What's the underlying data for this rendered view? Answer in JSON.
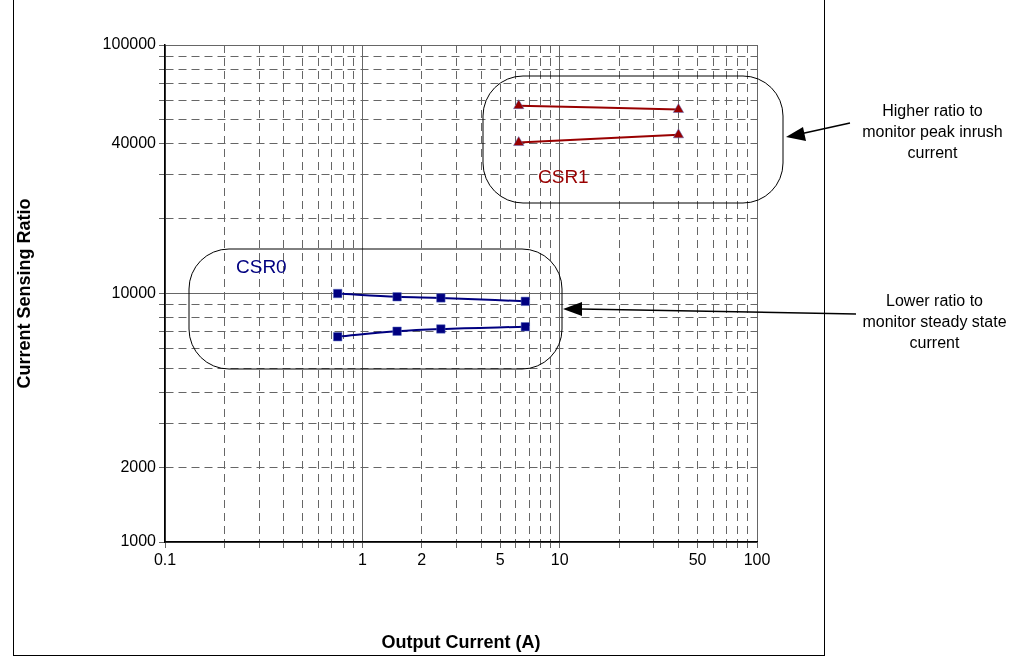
{
  "chart_data": {
    "type": "line",
    "xlabel": "Output Current (A)",
    "ylabel": "Current Sensing Ratio",
    "log": "xy",
    "grid": true,
    "legend": false,
    "xlim": [
      0.1,
      100
    ],
    "ylim": [
      1000,
      100000
    ],
    "xticks": [
      0.1,
      {
        "value": 0.2,
        "label": null
      },
      {
        "value": 0.3,
        "label": null
      },
      {
        "value": 0.4,
        "label": null
      },
      {
        "value": 0.5,
        "label": null
      },
      {
        "value": 0.6,
        "label": null
      },
      {
        "value": 0.7,
        "label": null
      },
      {
        "value": 0.8,
        "label": null
      },
      {
        "value": 0.9,
        "label": null
      },
      1,
      2,
      {
        "value": 3,
        "label": null
      },
      {
        "value": 4,
        "label": null
      },
      5,
      {
        "value": 6,
        "label": null
      },
      {
        "value": 7,
        "label": null
      },
      {
        "value": 8,
        "label": null
      },
      {
        "value": 9,
        "label": null
      },
      10,
      {
        "value": 20,
        "label": null
      },
      {
        "value": 30,
        "label": null
      },
      {
        "value": 40,
        "label": null
      },
      50,
      {
        "value": 60,
        "label": null
      },
      {
        "value": 70,
        "label": null
      },
      {
        "value": 80,
        "label": null
      },
      {
        "value": 90,
        "label": null
      },
      100
    ],
    "yticks": [
      1000,
      2000,
      {
        "value": 3000,
        "label": null
      },
      {
        "value": 4000,
        "label": null
      },
      {
        "value": 5000,
        "label": null
      },
      {
        "value": 6000,
        "label": null
      },
      {
        "value": 7000,
        "label": null
      },
      {
        "value": 8000,
        "label": null
      },
      {
        "value": 9000,
        "label": null
      },
      10000,
      {
        "value": 20000,
        "label": null
      },
      {
        "value": 30000,
        "label": null
      },
      40000,
      {
        "value": 50000,
        "label": null
      },
      {
        "value": 60000,
        "label": null
      },
      {
        "value": 70000,
        "label": null
      },
      {
        "value": 80000,
        "label": null
      },
      {
        "value": 90000,
        "label": null
      },
      100000
    ],
    "series": [
      {
        "color": "#000080",
        "marker": "square",
        "x": [
          0.75,
          1.5,
          2.5,
          6.7
        ],
        "values": [
          10000,
          9700,
          9600,
          9300
        ]
      },
      {
        "color": "#000080",
        "marker": "square",
        "x": [
          0.75,
          1.5,
          2.5,
          6.7
        ],
        "values": [
          6700,
          7050,
          7200,
          7350
        ]
      },
      {
        "color": "#990000",
        "marker": "triangle",
        "x": [
          6.2,
          40
        ],
        "values": [
          57000,
          55000
        ]
      },
      {
        "color": "#990000",
        "marker": "triangle",
        "x": [
          6.2,
          40
        ],
        "values": [
          40500,
          43500
        ]
      }
    ],
    "annotations": [
      "CSR0",
      "CSR1",
      "Higher ratio to monitor peak inrush current",
      "Lower ratio to monitor steady state current"
    ]
  }
}
